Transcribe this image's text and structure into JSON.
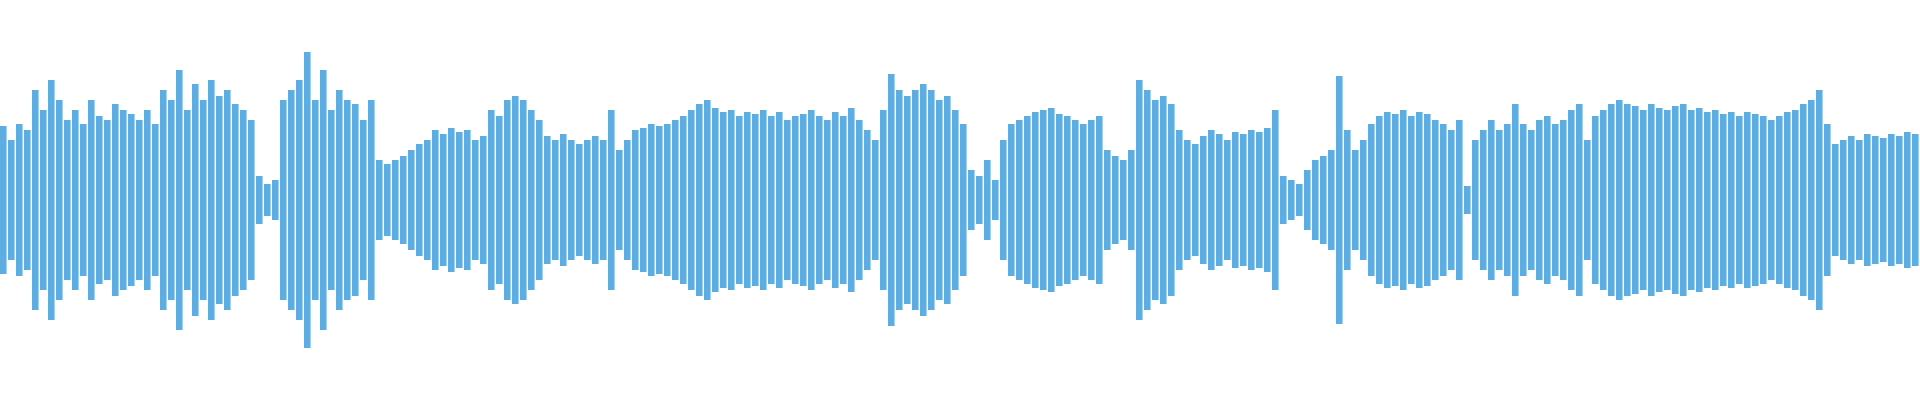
{
  "chart_data": {
    "type": "waveform",
    "color": "#5dade2",
    "ylim": [
      -1,
      1
    ],
    "values": [
      0.37,
      0.3,
      0.38,
      0.35,
      0.55,
      0.45,
      0.6,
      0.5,
      0.4,
      0.45,
      0.38,
      0.5,
      0.42,
      0.4,
      0.48,
      0.45,
      0.43,
      0.4,
      0.45,
      0.38,
      0.55,
      0.5,
      0.65,
      0.45,
      0.58,
      0.5,
      0.6,
      0.52,
      0.55,
      0.48,
      0.45,
      0.4,
      0.12,
      0.08,
      0.1,
      0.5,
      0.55,
      0.6,
      0.74,
      0.5,
      0.65,
      0.45,
      0.55,
      0.5,
      0.48,
      0.4,
      0.5,
      0.2,
      0.18,
      0.2,
      0.22,
      0.25,
      0.28,
      0.3,
      0.35,
      0.33,
      0.36,
      0.34,
      0.35,
      0.3,
      0.32,
      0.45,
      0.42,
      0.5,
      0.52,
      0.5,
      0.45,
      0.4,
      0.32,
      0.3,
      0.33,
      0.3,
      0.28,
      0.3,
      0.32,
      0.3,
      0.45,
      0.25,
      0.3,
      0.35,
      0.36,
      0.38,
      0.37,
      0.38,
      0.4,
      0.42,
      0.45,
      0.48,
      0.5,
      0.46,
      0.44,
      0.45,
      0.42,
      0.44,
      0.43,
      0.45,
      0.42,
      0.44,
      0.4,
      0.42,
      0.43,
      0.45,
      0.42,
      0.4,
      0.44,
      0.42,
      0.46,
      0.4,
      0.35,
      0.3,
      0.45,
      0.63,
      0.55,
      0.52,
      0.55,
      0.58,
      0.55,
      0.5,
      0.52,
      0.45,
      0.38,
      0.15,
      0.12,
      0.2,
      0.1,
      0.3,
      0.38,
      0.4,
      0.42,
      0.44,
      0.45,
      0.46,
      0.43,
      0.42,
      0.4,
      0.38,
      0.4,
      0.42,
      0.25,
      0.22,
      0.2,
      0.25,
      0.6,
      0.55,
      0.5,
      0.52,
      0.48,
      0.35,
      0.3,
      0.28,
      0.32,
      0.35,
      0.33,
      0.3,
      0.34,
      0.33,
      0.35,
      0.34,
      0.36,
      0.45,
      0.12,
      0.1,
      0.08,
      0.15,
      0.2,
      0.22,
      0.25,
      0.62,
      0.35,
      0.25,
      0.3,
      0.38,
      0.42,
      0.44,
      0.43,
      0.45,
      0.42,
      0.44,
      0.43,
      0.4,
      0.38,
      0.35,
      0.4,
      0.07,
      0.3,
      0.35,
      0.4,
      0.35,
      0.38,
      0.48,
      0.38,
      0.35,
      0.4,
      0.42,
      0.38,
      0.4,
      0.45,
      0.48,
      0.3,
      0.42,
      0.45,
      0.48,
      0.5,
      0.48,
      0.47,
      0.45,
      0.48,
      0.46,
      0.45,
      0.47,
      0.48,
      0.45,
      0.46,
      0.44,
      0.45,
      0.43,
      0.44,
      0.42,
      0.44,
      0.43,
      0.42,
      0.4,
      0.42,
      0.44,
      0.45,
      0.48,
      0.5,
      0.55,
      0.38,
      0.28,
      0.3,
      0.32,
      0.3,
      0.33,
      0.32,
      0.31,
      0.33,
      0.32,
      0.34,
      0.33
    ]
  }
}
